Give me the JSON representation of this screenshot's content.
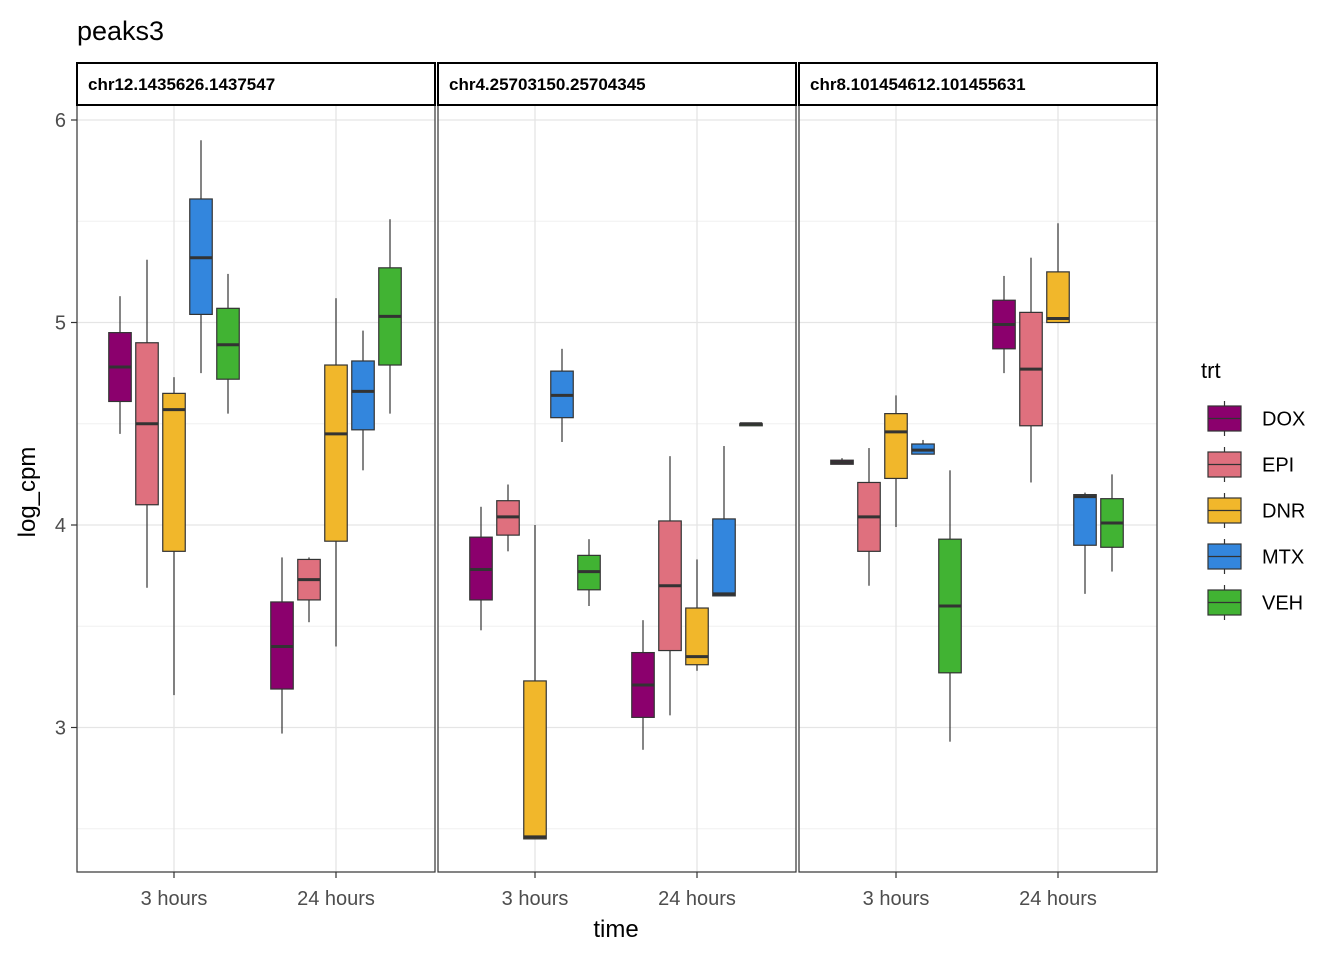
{
  "chart_data": {
    "type": "box",
    "title": "peaks3",
    "xlabel": "time",
    "ylabel": "log_cpm",
    "categories": [
      "3 hours",
      "24 hours"
    ],
    "yticks": [
      3,
      4,
      5,
      6
    ],
    "ylim": [
      2.3,
      6.06
    ],
    "grid": true,
    "legend": {
      "title": "trt",
      "position": "right",
      "items": [
        {
          "name": "DOX",
          "color": "#8B006D"
        },
        {
          "name": "EPI",
          "color": "#DF707E"
        },
        {
          "name": "DNR",
          "color": "#F1B72B"
        },
        {
          "name": "MTX",
          "color": "#3386DD"
        },
        {
          "name": "VEH",
          "color": "#41B333"
        }
      ]
    },
    "panels": [
      {
        "label": "chr12.1435626.1437547",
        "boxes": {
          "3 hours": [
            {
              "trt": "DOX",
              "min": 4.45,
              "q1": 4.61,
              "median": 4.78,
              "q3": 4.95,
              "max": 5.13
            },
            {
              "trt": "EPI",
              "min": 3.69,
              "q1": 4.1,
              "median": 4.5,
              "q3": 4.9,
              "max": 5.31
            },
            {
              "trt": "DNR",
              "min": 3.16,
              "q1": 3.87,
              "median": 4.57,
              "q3": 4.65,
              "max": 4.73
            },
            {
              "trt": "MTX",
              "min": 4.75,
              "q1": 5.04,
              "median": 5.32,
              "q3": 5.61,
              "max": 5.9
            },
            {
              "trt": "VEH",
              "min": 4.55,
              "q1": 4.72,
              "median": 4.89,
              "q3": 5.07,
              "max": 5.24
            }
          ],
          "24 hours": [
            {
              "trt": "DOX",
              "min": 2.97,
              "q1": 3.19,
              "median": 3.4,
              "q3": 3.62,
              "max": 3.84
            },
            {
              "trt": "EPI",
              "min": 3.52,
              "q1": 3.63,
              "median": 3.73,
              "q3": 3.83,
              "max": 3.84
            },
            {
              "trt": "DNR",
              "min": 3.4,
              "q1": 3.92,
              "median": 4.45,
              "q3": 4.79,
              "max": 5.12
            },
            {
              "trt": "MTX",
              "min": 4.27,
              "q1": 4.47,
              "median": 4.66,
              "q3": 4.81,
              "max": 4.96
            },
            {
              "trt": "VEH",
              "min": 4.55,
              "q1": 4.79,
              "median": 5.03,
              "q3": 5.27,
              "max": 5.51
            }
          ]
        }
      },
      {
        "label": "chr4.25703150.25704345",
        "boxes": {
          "3 hours": [
            {
              "trt": "DOX",
              "min": 3.48,
              "q1": 3.63,
              "median": 3.78,
              "q3": 3.94,
              "max": 4.09
            },
            {
              "trt": "EPI",
              "min": 3.87,
              "q1": 3.95,
              "median": 4.04,
              "q3": 4.12,
              "max": 4.2
            },
            {
              "trt": "DNR",
              "min": 2.45,
              "q1": 2.45,
              "median": 2.46,
              "q3": 3.23,
              "max": 4.0
            },
            {
              "trt": "MTX",
              "min": 4.41,
              "q1": 4.53,
              "median": 4.64,
              "q3": 4.76,
              "max": 4.87
            },
            {
              "trt": "VEH",
              "min": 3.6,
              "q1": 3.68,
              "median": 3.77,
              "q3": 3.85,
              "max": 3.93
            }
          ],
          "24 hours": [
            {
              "trt": "DOX",
              "min": 2.89,
              "q1": 3.05,
              "median": 3.21,
              "q3": 3.37,
              "max": 3.53
            },
            {
              "trt": "EPI",
              "min": 3.06,
              "q1": 3.38,
              "median": 3.7,
              "q3": 4.02,
              "max": 4.34
            },
            {
              "trt": "DNR",
              "min": 3.28,
              "q1": 3.31,
              "median": 3.35,
              "q3": 3.59,
              "max": 3.83
            },
            {
              "trt": "MTX",
              "min": 3.65,
              "q1": 3.65,
              "median": 3.66,
              "q3": 4.03,
              "max": 4.39
            },
            {
              "trt": "VEH",
              "min": 4.49,
              "q1": 4.49,
              "median": 4.5,
              "q3": 4.5,
              "max": 4.5
            }
          ]
        }
      },
      {
        "label": "chr8.101454612.101455631",
        "boxes": {
          "3 hours": [
            {
              "trt": "DOX",
              "min": 4.3,
              "q1": 4.3,
              "median": 4.31,
              "q3": 4.32,
              "max": 4.33
            },
            {
              "trt": "EPI",
              "min": 3.7,
              "q1": 3.87,
              "median": 4.04,
              "q3": 4.21,
              "max": 4.38
            },
            {
              "trt": "DNR",
              "min": 3.99,
              "q1": 4.23,
              "median": 4.46,
              "q3": 4.55,
              "max": 4.64
            },
            {
              "trt": "MTX",
              "min": 4.35,
              "q1": 4.35,
              "median": 4.37,
              "q3": 4.4,
              "max": 4.42
            },
            {
              "trt": "VEH",
              "min": 2.93,
              "q1": 3.27,
              "median": 3.6,
              "q3": 3.93,
              "max": 4.27
            }
          ],
          "24 hours": [
            {
              "trt": "DOX",
              "min": 4.75,
              "q1": 4.87,
              "median": 4.99,
              "q3": 5.11,
              "max": 5.23
            },
            {
              "trt": "EPI",
              "min": 4.21,
              "q1": 4.49,
              "median": 4.77,
              "q3": 5.05,
              "max": 5.32
            },
            {
              "trt": "DNR",
              "min": 5.0,
              "q1": 5.0,
              "median": 5.02,
              "q3": 5.25,
              "max": 5.49
            },
            {
              "trt": "MTX",
              "min": 3.66,
              "q1": 3.9,
              "median": 4.14,
              "q3": 4.15,
              "max": 4.16
            },
            {
              "trt": "VEH",
              "min": 3.77,
              "q1": 3.89,
              "median": 4.01,
              "q3": 4.13,
              "max": 4.25
            }
          ]
        }
      }
    ]
  }
}
